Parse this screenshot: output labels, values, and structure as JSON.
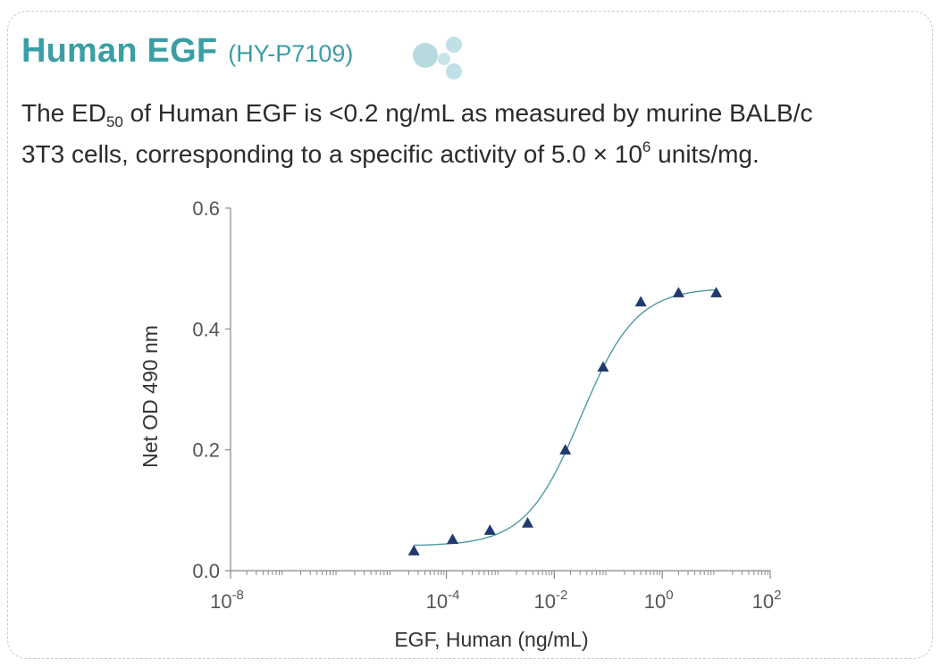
{
  "header": {
    "title": "Human EGF",
    "catalog_number": "(HY-P7109)",
    "logo_icon": "molecule-bubbles-icon"
  },
  "description": {
    "part1": "The ED",
    "sub": "50",
    "part2": " of Human EGF is <0.2 ng/mL as measured by murine BALB/c",
    "part3": "3T3 cells, corresponding to a specific activity of 5.0 × 10",
    "sup": "6",
    "part4": " units/mg."
  },
  "colors": {
    "accent": "#3a9ea5",
    "marker": "#1f3a6e",
    "curve": "#4f9aa3",
    "axis": "#888888",
    "text": "#333333"
  },
  "chart_data": {
    "type": "scatter",
    "x_scale": "log10",
    "xlabel": "EGF, Human (ng/mL)",
    "ylabel": "Net OD 490 nm",
    "xlim": [
      1e-08,
      100
    ],
    "ylim": [
      0,
      0.6
    ],
    "x_ticks": [
      {
        "base": "10",
        "exp": "-8"
      },
      {
        "base": "10",
        "exp": "-4"
      },
      {
        "base": "10",
        "exp": "-2"
      },
      {
        "base": "10",
        "exp": "0"
      },
      {
        "base": "10",
        "exp": "2"
      }
    ],
    "y_ticks": [
      "0.0",
      "0.2",
      "0.4",
      "0.6"
    ],
    "series": [
      {
        "marker": "triangle",
        "x": [
          2.5e-05,
          0.00013,
          0.00064,
          0.0032,
          0.016,
          0.08,
          0.4,
          2,
          10
        ],
        "y": [
          0.033,
          0.052,
          0.067,
          0.079,
          0.2,
          0.337,
          0.445,
          0.46,
          0.46
        ]
      }
    ],
    "fit_curve": {
      "type": "4PL",
      "bottom": 0.041,
      "top": 0.468,
      "ec50": 0.031,
      "hill": 0.85
    }
  }
}
